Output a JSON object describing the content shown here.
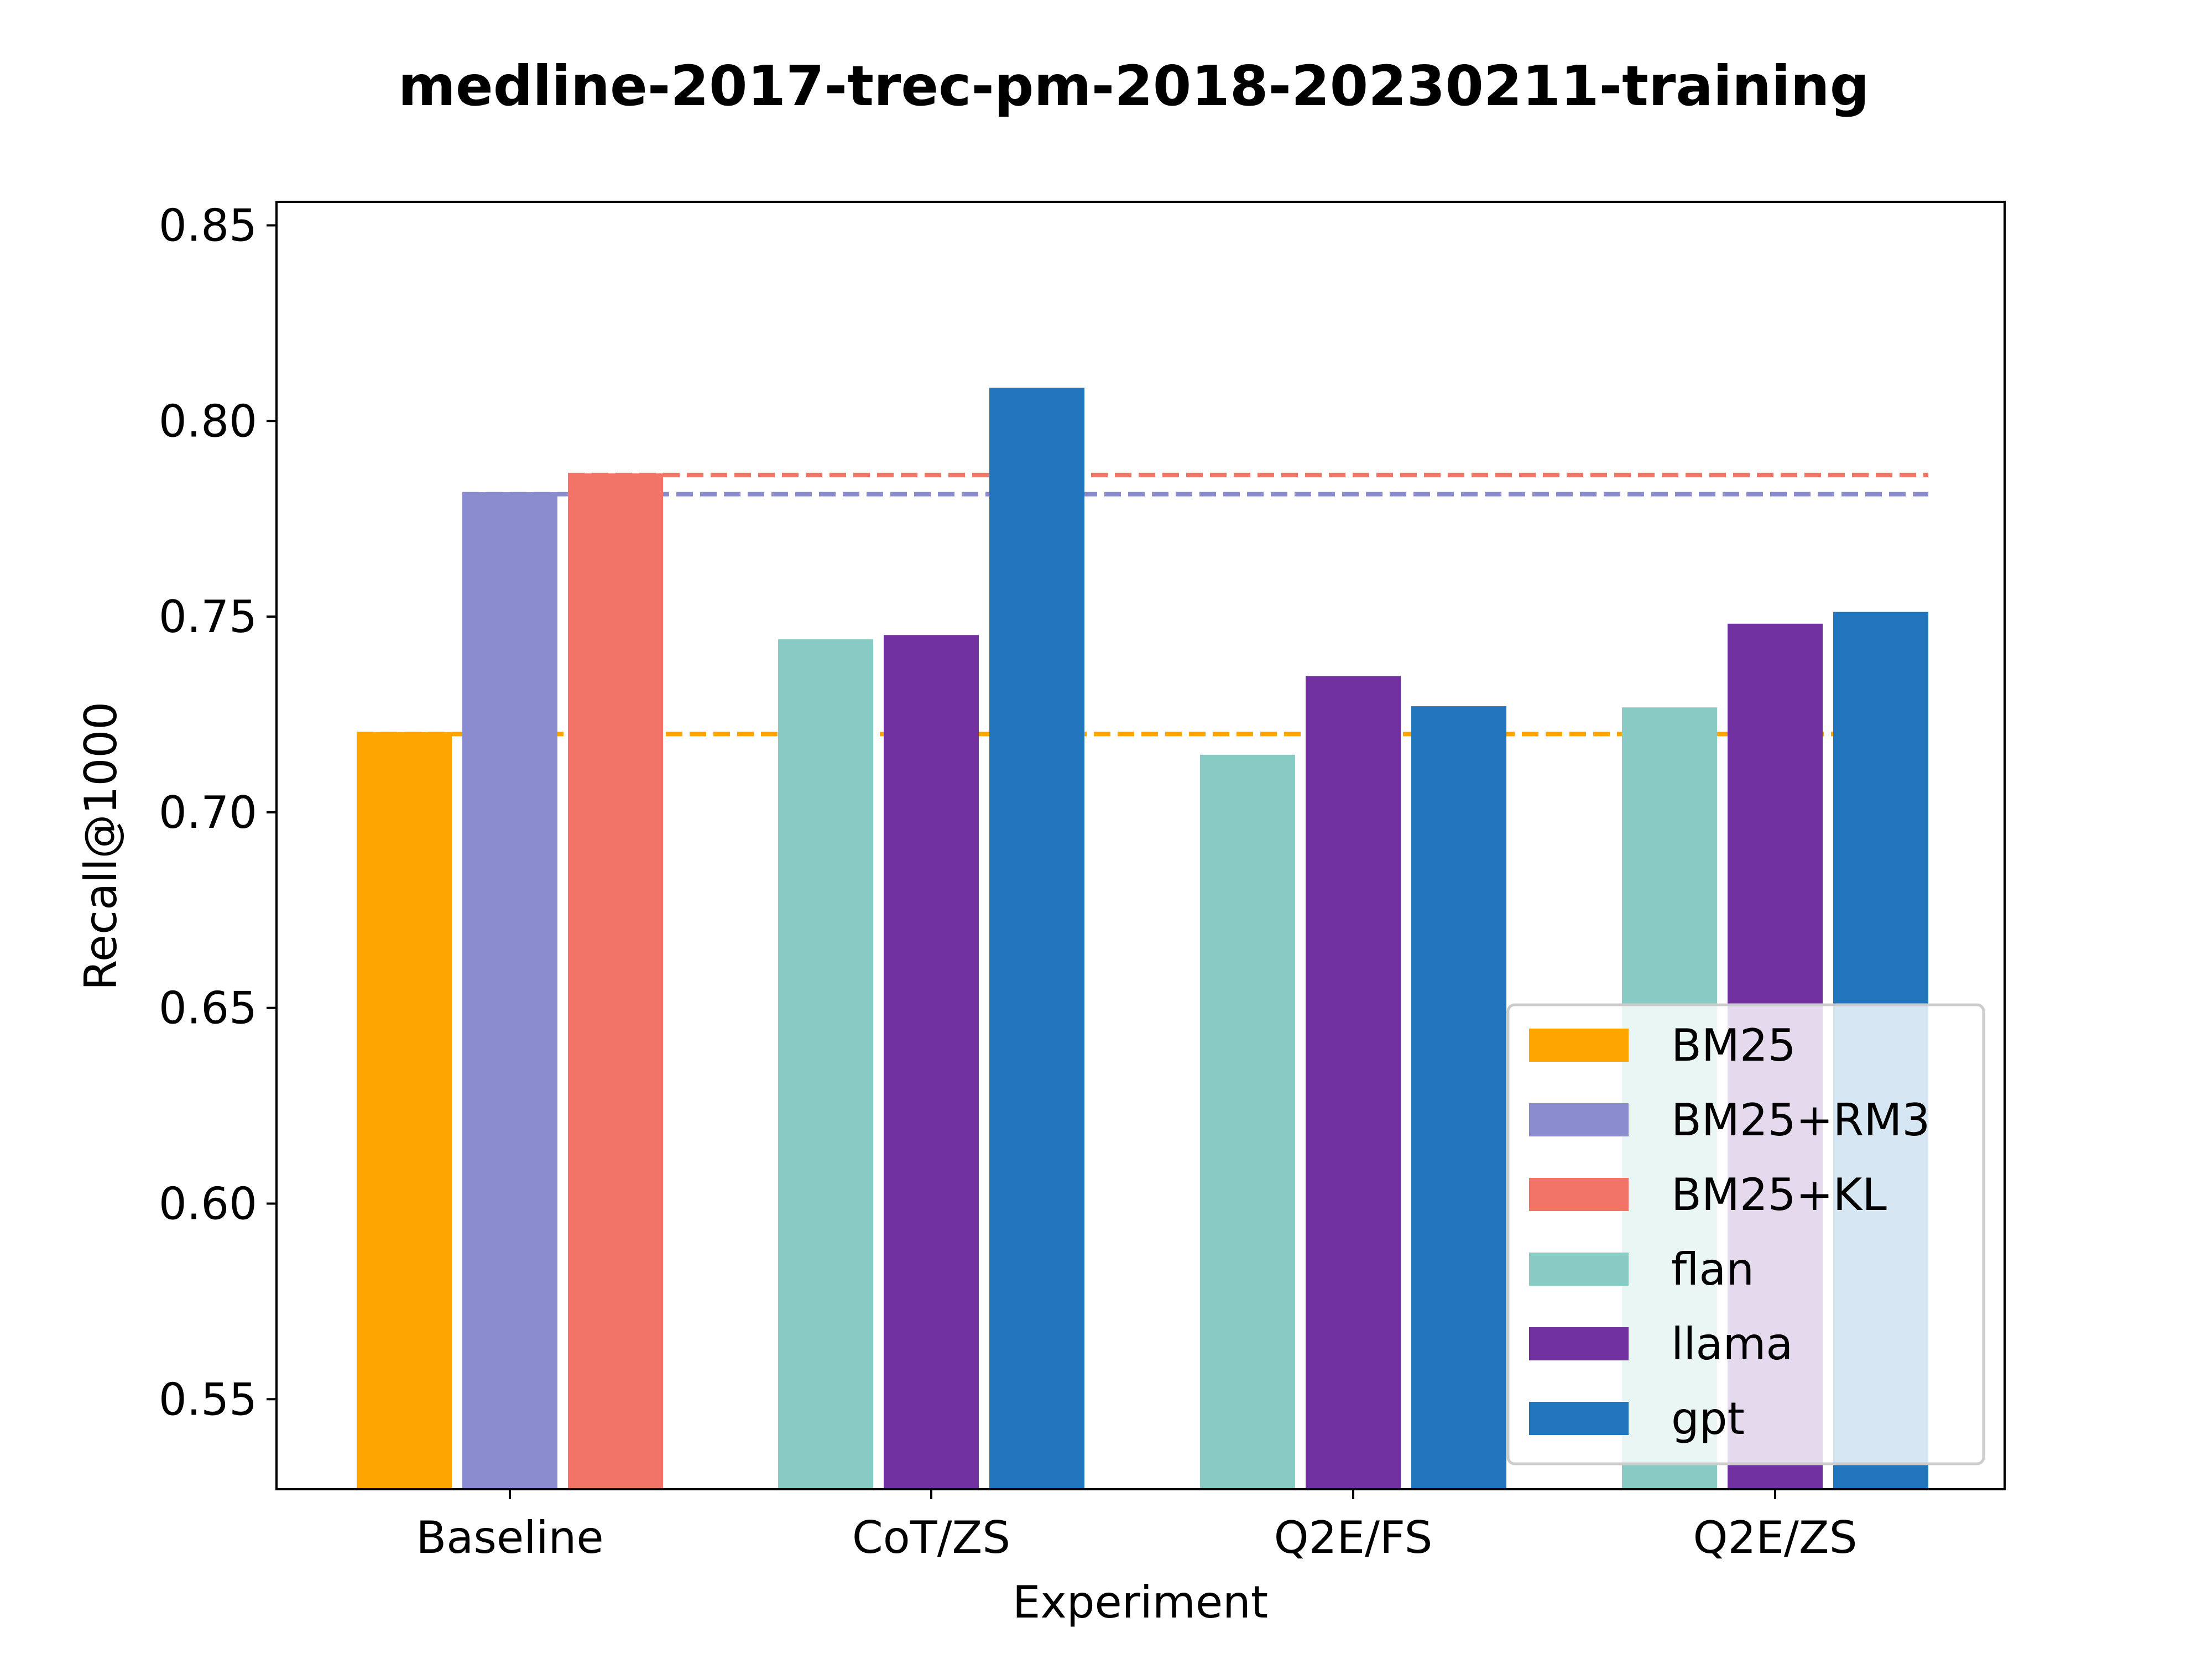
{
  "chart_data": {
    "type": "bar",
    "title": "medline-2017-trec-pm-2018-20230211-training",
    "xlabel": "Experiment",
    "ylabel": "Recall@1000",
    "ylim": [
      0.527,
      0.856
    ],
    "yticks": [
      "0.55",
      "0.60",
      "0.65",
      "0.70",
      "0.75",
      "0.80",
      "0.85"
    ],
    "categories": [
      "Baseline",
      "CoT/ZS",
      "Q2E/FS",
      "Q2E/ZS"
    ],
    "series": [
      {
        "name": "BM25",
        "color": "#ffa500",
        "values": [
          0.7205,
          null,
          null,
          null
        ]
      },
      {
        "name": "BM25+RM3",
        "color": "#8a8ccf",
        "values": [
          0.7818,
          null,
          null,
          null
        ]
      },
      {
        "name": "BM25+KL",
        "color": "#f27466",
        "values": [
          0.7866,
          null,
          null,
          null
        ]
      },
      {
        "name": "flan",
        "color": "#87cbc4",
        "values": [
          null,
          0.7442,
          0.7147,
          0.7268
        ]
      },
      {
        "name": "llama",
        "color": "#7030a0",
        "values": [
          null,
          0.7453,
          0.7348,
          0.7482
        ]
      },
      {
        "name": "gpt",
        "color": "#2075bc",
        "values": [
          null,
          0.8085,
          0.7271,
          0.7512
        ]
      }
    ],
    "reference_lines": [
      {
        "series": "BM25",
        "value": 0.72,
        "style": "dashed"
      },
      {
        "series": "BM25+RM3",
        "value": 0.7813,
        "style": "dashed"
      },
      {
        "series": "BM25+KL",
        "value": 0.7862,
        "style": "dashed"
      }
    ],
    "legend_position": "bottom-right",
    "grid": false
  }
}
